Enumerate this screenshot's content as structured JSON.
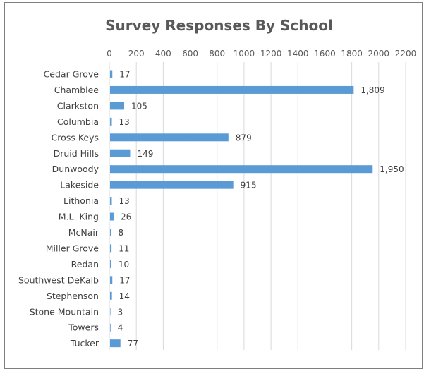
{
  "chart_data": {
    "type": "bar",
    "orientation": "horizontal",
    "title": "Survey Responses By School",
    "xlabel": "",
    "ylabel": "",
    "xlim": [
      0,
      2200
    ],
    "xticks": [
      0,
      200,
      400,
      600,
      800,
      1000,
      1200,
      1400,
      1600,
      1800,
      2000,
      2200
    ],
    "grid": true,
    "legend": "none",
    "bar_color": "#5b9bd5",
    "categories": [
      "Cedar Grove",
      "Chamblee",
      "Clarkston",
      "Columbia",
      "Cross Keys",
      "Druid Hills",
      "Dunwoody",
      "Lakeside",
      "Lithonia",
      "M.L. King",
      "McNair",
      "Miller Grove",
      "Redan",
      "Southwest DeKalb",
      "Stephenson",
      "Stone Mountain",
      "Towers",
      "Tucker"
    ],
    "values": [
      17,
      1809,
      105,
      13,
      879,
      149,
      1950,
      915,
      13,
      26,
      8,
      11,
      10,
      17,
      14,
      3,
      4,
      77
    ],
    "data_labels": [
      "17",
      "1,809",
      "105",
      "13",
      "879",
      "149",
      "1,950",
      "915",
      "13",
      "26",
      "8",
      "11",
      "10",
      "17",
      "14",
      "3",
      "4",
      "77"
    ]
  }
}
